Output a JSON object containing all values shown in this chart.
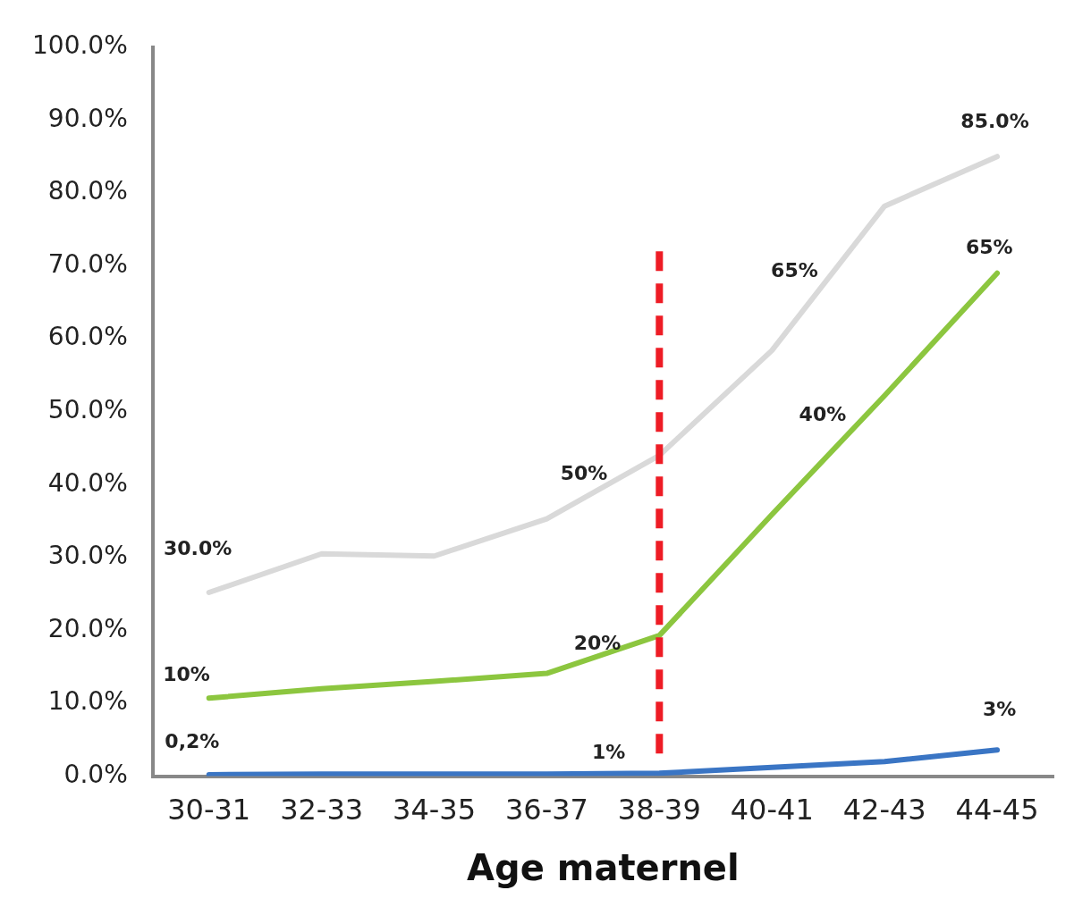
{
  "chart_data": {
    "type": "line",
    "xlabel": "Age maternel",
    "categories": [
      "30-31",
      "32-33",
      "34-35",
      "36-37",
      "38-39",
      "40-41",
      "42-43",
      "44-45"
    ],
    "series": [
      {
        "color": "#d9d9d9",
        "values": [
          25.2,
          30.5,
          30.2,
          35.3,
          44,
          58.4,
          78.2,
          85
        ]
      },
      {
        "color": "#8cc63f",
        "values": [
          10.7,
          12,
          13,
          14.1,
          19.3,
          35.9,
          52.2,
          69
        ]
      },
      {
        "color": "#3a75c4",
        "values": [
          0.2,
          0.3,
          0.3,
          0.3,
          0.4,
          1.2,
          2,
          3.6
        ]
      }
    ],
    "ylim": [
      0,
      100
    ],
    "yticks": [
      {
        "value": 0,
        "label": "0.0%"
      },
      {
        "value": 10,
        "label": "10.0%"
      },
      {
        "value": 20,
        "label": "20.0%"
      },
      {
        "value": 30,
        "label": "30.0%"
      },
      {
        "value": 40,
        "label": "40.0%"
      },
      {
        "value": 50,
        "label": "50.0%"
      },
      {
        "value": 60,
        "label": "60.0%"
      },
      {
        "value": 70,
        "label": "70.0%"
      },
      {
        "value": 80,
        "label": "80.0%"
      },
      {
        "value": 90,
        "label": "90.0%"
      },
      {
        "value": 100,
        "label": "100.0%"
      }
    ],
    "grid": false,
    "legend": false,
    "marker": "none",
    "line_style": "solid",
    "ref_lines": [
      {
        "axis": "x",
        "value": "38-39",
        "color": "#ee1c25",
        "line_style": "dashed"
      }
    ],
    "annotations": [
      "30.0%",
      "10%",
      "0,2%",
      "50%",
      "20%",
      "1%",
      "65%",
      "40%",
      "85.0%",
      "65%",
      "3%"
    ]
  }
}
